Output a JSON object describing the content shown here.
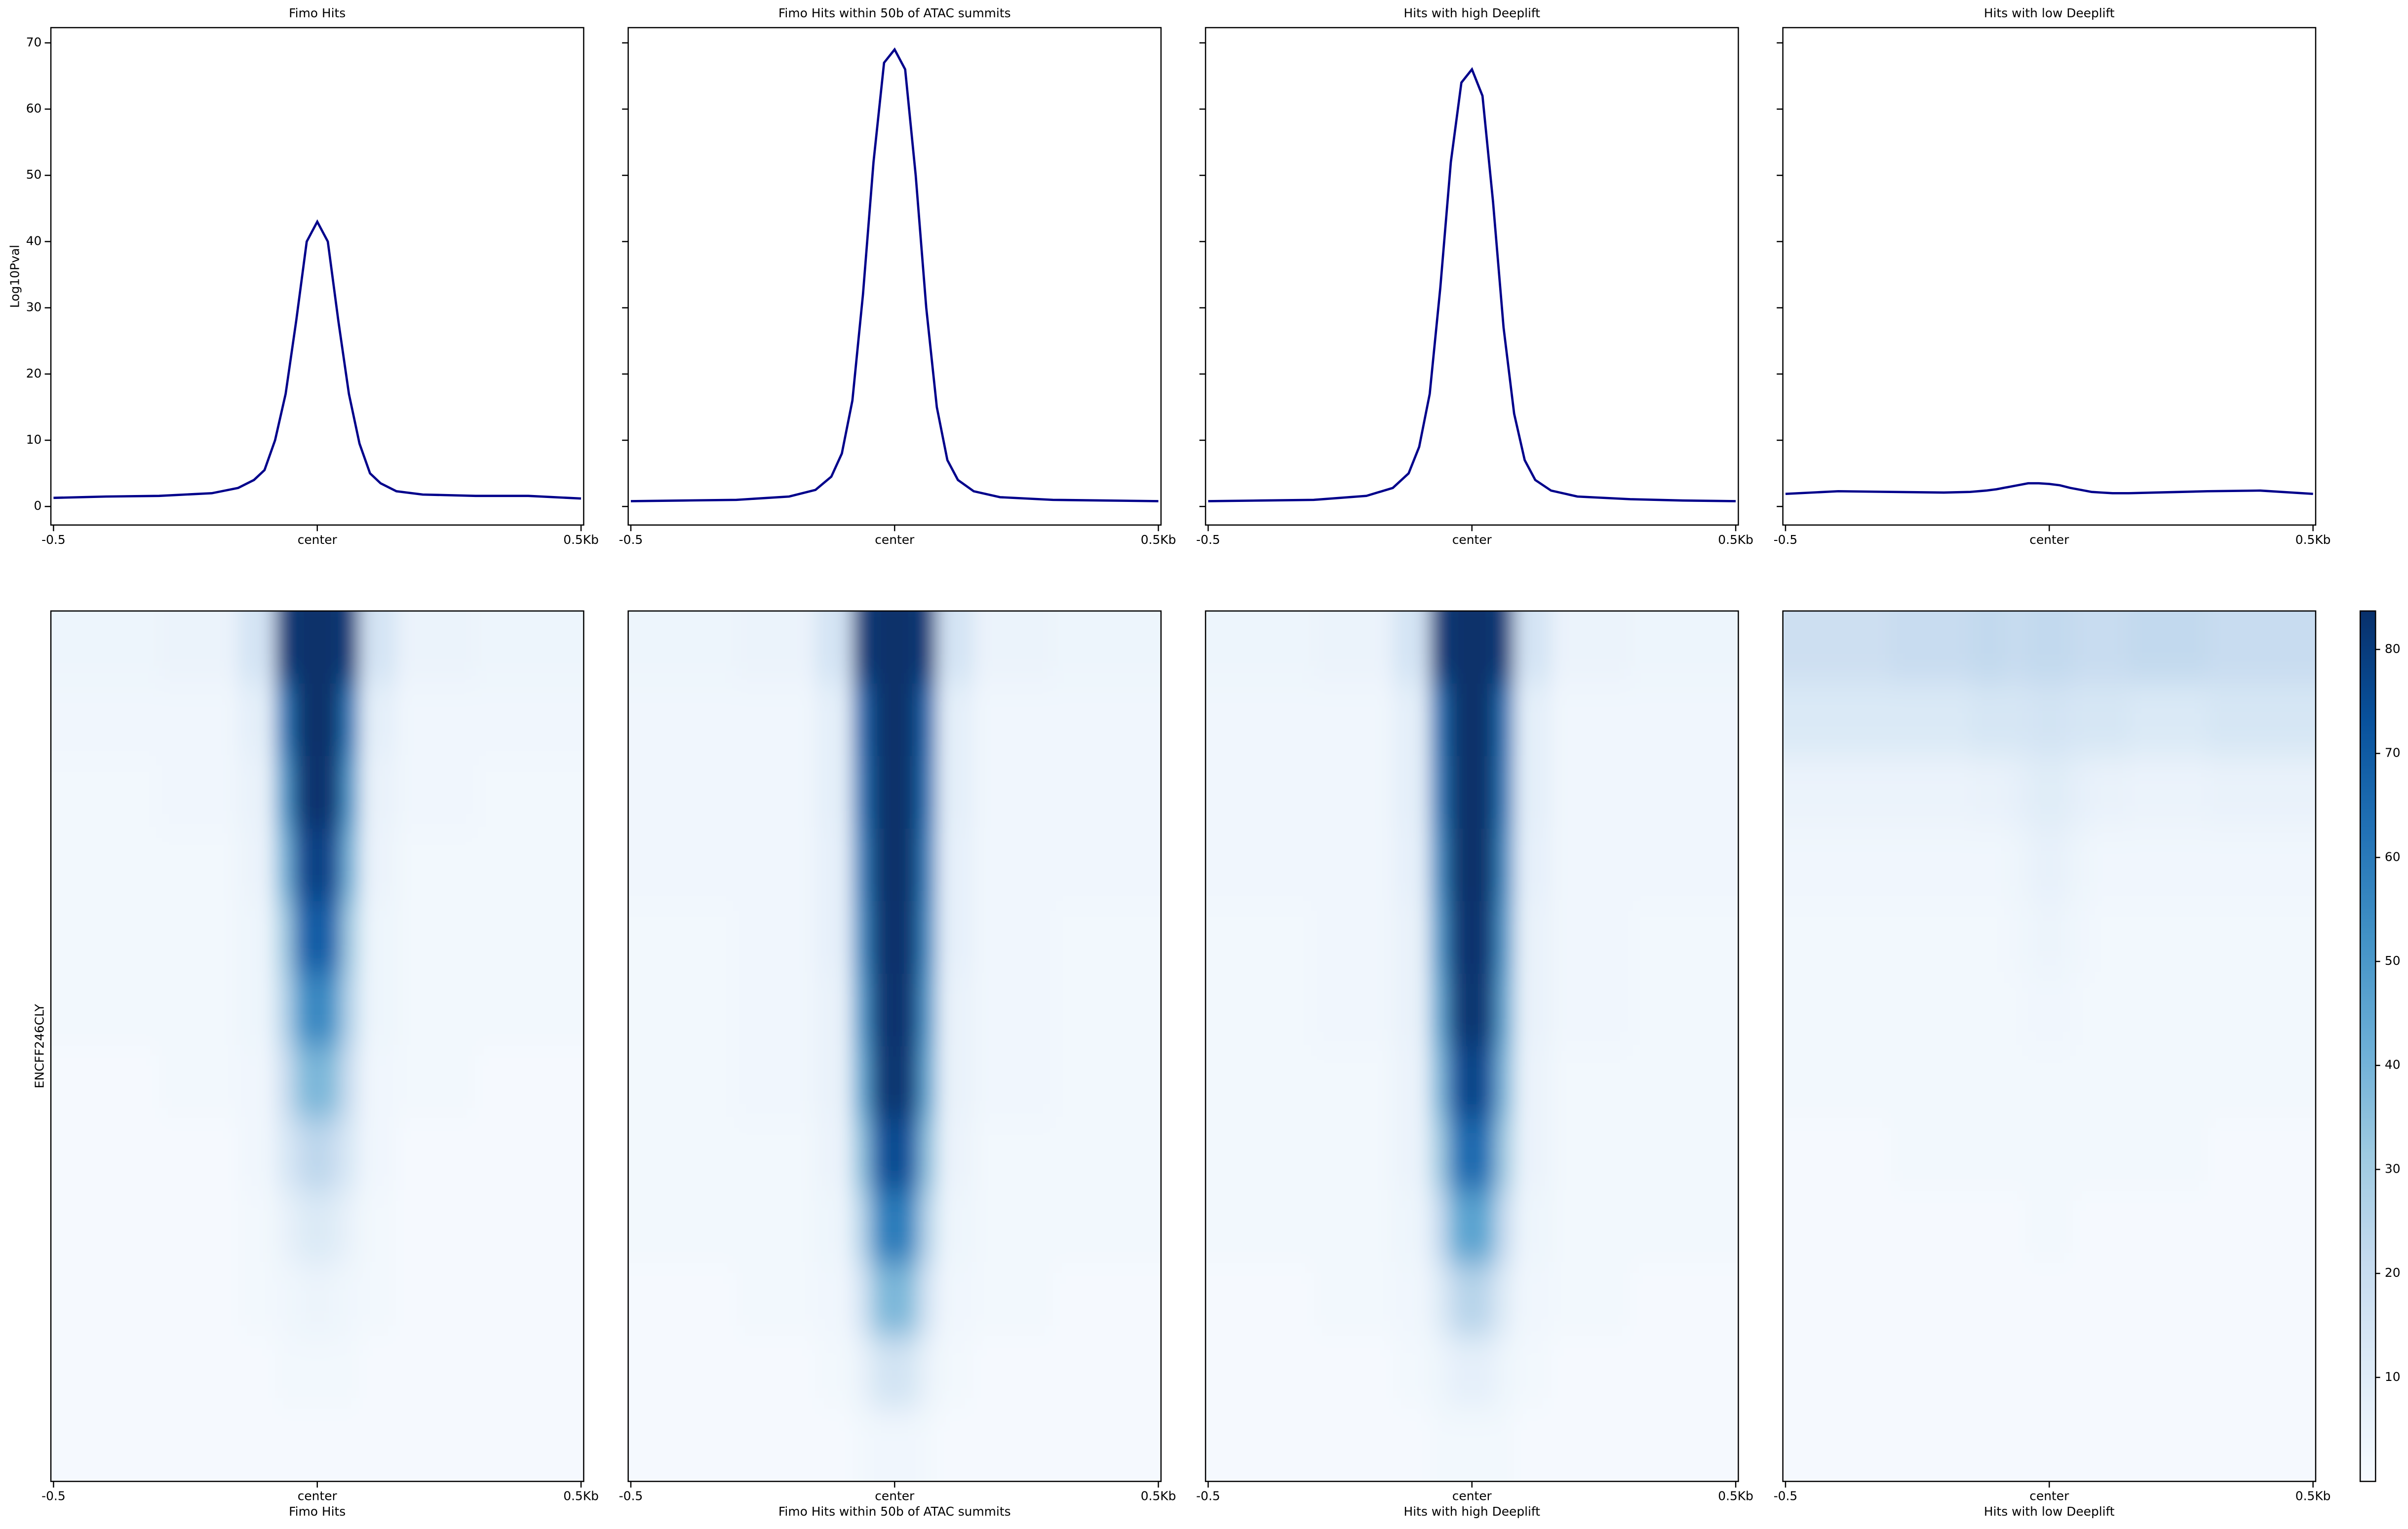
{
  "chart_data": [
    {
      "type": "line",
      "title": "Fimo Hits",
      "ylabel": "Log10Pval",
      "x": [
        -0.5,
        -0.4,
        -0.3,
        -0.2,
        -0.15,
        -0.12,
        -0.1,
        -0.08,
        -0.06,
        -0.04,
        -0.02,
        0,
        0.02,
        0.04,
        0.06,
        0.08,
        0.1,
        0.12,
        0.15,
        0.2,
        0.3,
        0.4,
        0.5
      ],
      "series": [
        {
          "color": "#00008b",
          "values": [
            1.3,
            1.5,
            1.6,
            2.0,
            2.8,
            4,
            5.5,
            10,
            17,
            28,
            40,
            43,
            40,
            28,
            17,
            9.5,
            5,
            3.5,
            2.3,
            1.8,
            1.6,
            1.6,
            1.2
          ]
        }
      ],
      "xlim": [
        -0.505,
        0.505
      ],
      "xticks": [
        {
          "value": -0.5,
          "label": "-0.5"
        },
        {
          "value": 0,
          "label": "center"
        },
        {
          "value": 0.5,
          "label": "0.5Kb"
        }
      ],
      "ylim": [
        -2.8,
        72.3
      ],
      "yticks": [
        0,
        10,
        20,
        30,
        40,
        50,
        60,
        70
      ],
      "ytick_labels": true
    },
    {
      "type": "line",
      "title": "Fimo Hits within 50b of ATAC summits",
      "x": [
        -0.5,
        -0.4,
        -0.3,
        -0.2,
        -0.15,
        -0.12,
        -0.1,
        -0.08,
        -0.06,
        -0.04,
        -0.02,
        0,
        0.02,
        0.04,
        0.06,
        0.08,
        0.1,
        0.12,
        0.15,
        0.2,
        0.3,
        0.4,
        0.5
      ],
      "series": [
        {
          "color": "#00008b",
          "values": [
            0.8,
            0.9,
            1.0,
            1.5,
            2.5,
            4.5,
            8,
            16,
            32,
            52,
            67,
            69,
            66,
            50,
            30,
            15,
            7,
            4,
            2.3,
            1.4,
            1.0,
            0.9,
            0.8
          ]
        }
      ],
      "xlim": [
        -0.505,
        0.505
      ],
      "xticks": [
        {
          "value": -0.5,
          "label": "-0.5"
        },
        {
          "value": 0,
          "label": "center"
        },
        {
          "value": 0.5,
          "label": "0.5Kb"
        }
      ],
      "ylim": [
        -2.8,
        72.3
      ],
      "yticks": [
        0,
        10,
        20,
        30,
        40,
        50,
        60,
        70
      ],
      "ytick_labels": false
    },
    {
      "type": "line",
      "title": "Hits with high Deeplift",
      "x": [
        -0.5,
        -0.4,
        -0.3,
        -0.2,
        -0.15,
        -0.12,
        -0.1,
        -0.08,
        -0.06,
        -0.04,
        -0.02,
        0,
        0.02,
        0.04,
        0.06,
        0.08,
        0.1,
        0.12,
        0.15,
        0.2,
        0.3,
        0.4,
        0.5
      ],
      "series": [
        {
          "color": "#00008b",
          "values": [
            0.8,
            0.9,
            1.0,
            1.6,
            2.8,
            5,
            9,
            17,
            33,
            52,
            64,
            66,
            62,
            46,
            27,
            14,
            7,
            4,
            2.4,
            1.5,
            1.1,
            0.9,
            0.8
          ]
        }
      ],
      "xlim": [
        -0.505,
        0.505
      ],
      "xticks": [
        {
          "value": -0.5,
          "label": "-0.5"
        },
        {
          "value": 0,
          "label": "center"
        },
        {
          "value": 0.5,
          "label": "0.5Kb"
        }
      ],
      "ylim": [
        -2.8,
        72.3
      ],
      "yticks": [
        0,
        10,
        20,
        30,
        40,
        50,
        60,
        70
      ],
      "ytick_labels": false
    },
    {
      "type": "line",
      "title": "Hits with low Deeplift",
      "x": [
        -0.5,
        -0.4,
        -0.3,
        -0.2,
        -0.15,
        -0.12,
        -0.1,
        -0.08,
        -0.06,
        -0.04,
        -0.02,
        0,
        0.02,
        0.04,
        0.06,
        0.08,
        0.1,
        0.12,
        0.15,
        0.2,
        0.3,
        0.4,
        0.5
      ],
      "series": [
        {
          "color": "#00008b",
          "values": [
            1.9,
            2.3,
            2.2,
            2.1,
            2.2,
            2.4,
            2.6,
            2.9,
            3.2,
            3.5,
            3.5,
            3.4,
            3.2,
            2.8,
            2.5,
            2.2,
            2.1,
            2.0,
            2.0,
            2.1,
            2.3,
            2.4,
            1.9
          ]
        }
      ],
      "xlim": [
        -0.505,
        0.505
      ],
      "xticks": [
        {
          "value": -0.5,
          "label": "-0.5"
        },
        {
          "value": 0,
          "label": "center"
        },
        {
          "value": 0.5,
          "label": "0.5Kb"
        }
      ],
      "ylim": [
        -2.8,
        72.3
      ],
      "yticks": [
        0,
        10,
        20,
        30,
        40,
        50,
        60,
        70
      ],
      "ytick_labels": false
    },
    {
      "type": "heatmap",
      "xlabel": "Fimo Hits",
      "ylabel": "ENCFF246CLY",
      "colormap": "Blues",
      "x": [
        -0.4,
        -0.2,
        -0.1,
        -0.06,
        -0.03,
        0,
        0.03,
        0.06,
        0.1,
        0.2,
        0.4
      ],
      "values": [
        [
          4,
          5,
          15,
          80,
          84,
          84,
          84,
          80,
          15,
          5,
          4
        ],
        [
          3,
          3,
          8,
          60,
          84,
          84,
          84,
          60,
          8,
          3,
          3
        ],
        [
          2,
          3,
          6,
          50,
          82,
          84,
          82,
          50,
          6,
          3,
          2
        ],
        [
          2,
          2,
          5,
          40,
          75,
          80,
          75,
          40,
          5,
          2,
          2
        ],
        [
          2,
          2,
          4,
          30,
          65,
          72,
          65,
          30,
          4,
          2,
          2
        ],
        [
          2,
          2,
          4,
          25,
          50,
          58,
          50,
          25,
          4,
          2,
          2
        ],
        [
          1,
          2,
          3,
          18,
          35,
          40,
          35,
          18,
          3,
          2,
          1
        ],
        [
          1,
          1,
          3,
          12,
          20,
          24,
          20,
          12,
          3,
          1,
          1
        ],
        [
          1,
          1,
          2,
          6,
          10,
          12,
          10,
          6,
          2,
          1,
          1
        ],
        [
          1,
          1,
          2,
          3,
          4,
          5,
          4,
          3,
          2,
          1,
          1
        ],
        [
          1,
          1,
          1,
          2,
          2,
          2,
          2,
          2,
          1,
          1,
          1
        ],
        [
          1,
          1,
          1,
          1,
          1,
          1,
          1,
          1,
          1,
          1,
          1
        ]
      ],
      "xlim": [
        -0.505,
        0.505
      ],
      "xticks": [
        {
          "value": -0.5,
          "label": "-0.5"
        },
        {
          "value": 0,
          "label": "center"
        },
        {
          "value": 0.5,
          "label": "0.5Kb"
        }
      ],
      "zlim": [
        0,
        83.7
      ]
    },
    {
      "type": "heatmap",
      "xlabel": "Fimo Hits within 50b of ATAC summits",
      "colormap": "Blues",
      "x": [
        -0.4,
        -0.2,
        -0.1,
        -0.06,
        -0.03,
        0,
        0.03,
        0.06,
        0.1,
        0.2,
        0.4
      ],
      "values": [
        [
          4,
          5,
          15,
          80,
          84,
          84,
          84,
          80,
          15,
          5,
          4
        ],
        [
          3,
          3,
          8,
          65,
          84,
          84,
          84,
          65,
          8,
          3,
          3
        ],
        [
          3,
          3,
          8,
          62,
          84,
          84,
          84,
          62,
          8,
          3,
          3
        ],
        [
          3,
          3,
          7,
          58,
          84,
          84,
          84,
          58,
          7,
          3,
          3
        ],
        [
          2,
          3,
          7,
          55,
          83,
          84,
          83,
          55,
          7,
          3,
          2
        ],
        [
          2,
          3,
          6,
          50,
          82,
          84,
          82,
          50,
          6,
          3,
          2
        ],
        [
          2,
          3,
          6,
          45,
          80,
          84,
          80,
          45,
          6,
          3,
          2
        ],
        [
          2,
          2,
          5,
          35,
          70,
          78,
          70,
          35,
          5,
          2,
          2
        ],
        [
          2,
          2,
          4,
          25,
          55,
          62,
          55,
          25,
          4,
          2,
          2
        ],
        [
          1,
          2,
          3,
          15,
          35,
          40,
          35,
          15,
          3,
          2,
          1
        ],
        [
          1,
          1,
          2,
          6,
          14,
          16,
          14,
          6,
          2,
          1,
          1
        ],
        [
          1,
          1,
          1,
          2,
          3,
          3,
          3,
          2,
          1,
          1,
          1
        ]
      ],
      "xlim": [
        -0.505,
        0.505
      ],
      "xticks": [
        {
          "value": -0.5,
          "label": "-0.5"
        },
        {
          "value": 0,
          "label": "center"
        },
        {
          "value": 0.5,
          "label": "0.5Kb"
        }
      ],
      "zlim": [
        0,
        83.7
      ]
    },
    {
      "type": "heatmap",
      "xlabel": "Hits with high Deeplift",
      "colormap": "Blues",
      "x": [
        -0.4,
        -0.2,
        -0.1,
        -0.06,
        -0.03,
        0,
        0.03,
        0.06,
        0.1,
        0.2,
        0.4
      ],
      "values": [
        [
          4,
          5,
          15,
          80,
          84,
          84,
          84,
          80,
          15,
          5,
          4
        ],
        [
          3,
          3,
          8,
          62,
          84,
          84,
          84,
          62,
          8,
          3,
          3
        ],
        [
          3,
          3,
          8,
          60,
          84,
          84,
          84,
          60,
          8,
          3,
          3
        ],
        [
          3,
          3,
          7,
          55,
          84,
          84,
          84,
          55,
          7,
          3,
          3
        ],
        [
          2,
          3,
          6,
          50,
          82,
          84,
          82,
          50,
          6,
          3,
          2
        ],
        [
          2,
          3,
          6,
          45,
          80,
          84,
          80,
          45,
          6,
          3,
          2
        ],
        [
          2,
          2,
          5,
          38,
          72,
          80,
          72,
          38,
          5,
          2,
          2
        ],
        [
          2,
          2,
          5,
          30,
          60,
          68,
          60,
          30,
          5,
          2,
          2
        ],
        [
          2,
          2,
          4,
          20,
          42,
          48,
          42,
          20,
          4,
          2,
          2
        ],
        [
          1,
          2,
          3,
          10,
          22,
          26,
          22,
          10,
          3,
          2,
          1
        ],
        [
          1,
          1,
          2,
          4,
          7,
          8,
          7,
          4,
          2,
          1,
          1
        ],
        [
          1,
          1,
          1,
          2,
          2,
          2,
          2,
          2,
          1,
          1,
          1
        ]
      ],
      "xlim": [
        -0.505,
        0.505
      ],
      "xticks": [
        {
          "value": -0.5,
          "label": "-0.5"
        },
        {
          "value": 0,
          "label": "center"
        },
        {
          "value": 0.5,
          "label": "0.5Kb"
        }
      ],
      "zlim": [
        0,
        83.7
      ]
    },
    {
      "type": "heatmap",
      "xlabel": "Hits with low Deeplift",
      "colormap": "Blues",
      "x": [
        -0.4,
        -0.2,
        -0.1,
        -0.06,
        -0.03,
        0,
        0.03,
        0.06,
        0.1,
        0.2,
        0.4
      ],
      "values": [
        [
          18,
          20,
          22,
          20,
          22,
          22,
          22,
          20,
          20,
          22,
          20
        ],
        [
          12,
          12,
          14,
          14,
          15,
          16,
          15,
          14,
          14,
          12,
          14
        ],
        [
          5,
          5,
          6,
          7,
          9,
          10,
          9,
          7,
          6,
          5,
          6
        ],
        [
          3,
          3,
          3,
          4,
          6,
          7,
          6,
          4,
          3,
          3,
          3
        ],
        [
          2,
          2,
          2,
          3,
          4,
          5,
          4,
          3,
          2,
          2,
          2
        ],
        [
          2,
          2,
          2,
          2,
          3,
          3,
          3,
          2,
          2,
          2,
          2
        ],
        [
          2,
          2,
          2,
          2,
          2,
          2,
          2,
          2,
          2,
          2,
          2
        ],
        [
          1,
          2,
          2,
          2,
          2,
          2,
          2,
          2,
          2,
          2,
          1
        ],
        [
          1,
          1,
          1,
          1,
          2,
          2,
          2,
          1,
          1,
          1,
          1
        ],
        [
          1,
          1,
          1,
          1,
          1,
          1,
          1,
          1,
          1,
          1,
          1
        ],
        [
          1,
          1,
          1,
          1,
          1,
          1,
          1,
          1,
          1,
          1,
          1
        ],
        [
          1,
          1,
          1,
          1,
          1,
          1,
          1,
          1,
          1,
          1,
          1
        ]
      ],
      "xlim": [
        -0.505,
        0.505
      ],
      "xticks": [
        {
          "value": -0.5,
          "label": "-0.5"
        },
        {
          "value": 0,
          "label": "center"
        },
        {
          "value": 0.5,
          "label": "0.5Kb"
        }
      ],
      "zlim": [
        0,
        83.7
      ],
      "colorbar": true,
      "zticks": [
        10,
        20,
        30,
        40,
        50,
        60,
        70,
        80
      ]
    }
  ]
}
